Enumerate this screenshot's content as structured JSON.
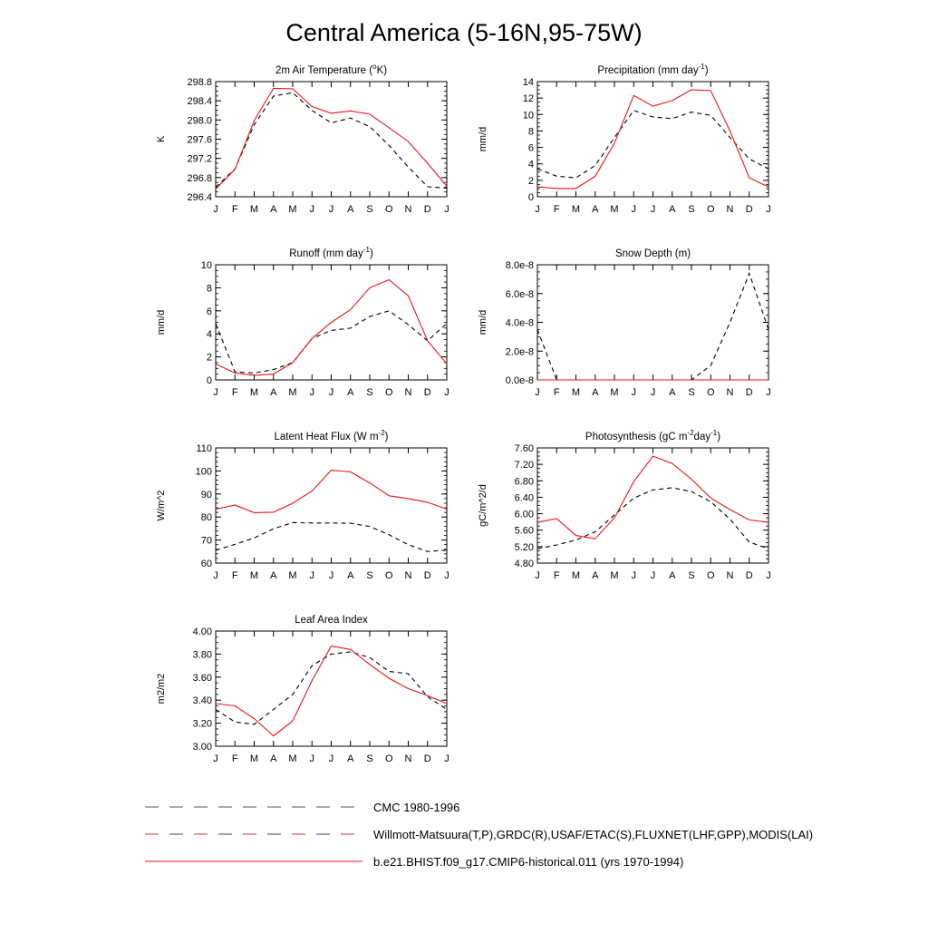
{
  "title": "Central America (5-16N,95-75W)",
  "months": [
    "J",
    "F",
    "M",
    "A",
    "M",
    "J",
    "J",
    "A",
    "S",
    "O",
    "N",
    "D",
    "J"
  ],
  "colors": {
    "model": "#e8141e",
    "obs": "#000000"
  },
  "legend": [
    {
      "label": "CMC 1980-1996",
      "style": "dashed-gray"
    },
    {
      "label": "Willmott-Matsuura(T,P),GRDC(R),USAF/ETAC(S),FLUXNET(LHF,GPP),MODIS(LAI)",
      "style": "dashed-redblue"
    },
    {
      "label": "b.e21.BHIST.f09_g17.CMIP6-historical.011 (yrs 1970-1994)",
      "style": "solid-red"
    }
  ],
  "chart_data": [
    {
      "type": "line",
      "title_main": "2m Air Temperature (",
      "title_sup": "o",
      "title_end": "K)",
      "ylabel": "K",
      "ylim": [
        296.4,
        298.8
      ],
      "yticks": [
        "296.4",
        "296.8",
        "297.2",
        "297.6",
        "298.0",
        "298.4",
        "298.8"
      ],
      "yminor": 0.1,
      "series": [
        {
          "values": [
            296.56,
            296.97,
            297.99,
            298.66,
            298.65,
            298.28,
            298.14,
            298.19,
            298.12,
            297.84,
            297.55,
            297.1,
            296.62
          ],
          "style": "solid"
        },
        {
          "values": [
            296.6,
            296.98,
            297.9,
            298.5,
            298.57,
            298.2,
            297.94,
            298.04,
            297.86,
            297.47,
            297.02,
            296.61,
            296.58
          ],
          "style": "dashed"
        }
      ]
    },
    {
      "type": "line",
      "title_main": "Precipitation (mm day",
      "title_sup": "-1",
      "title_end": ")",
      "ylabel": "mm/d",
      "ylim": [
        0,
        14
      ],
      "yticks": [
        "0",
        "2",
        "4",
        "6",
        "8",
        "10",
        "12",
        "14"
      ],
      "yminor": 0.5,
      "series": [
        {
          "values": [
            1.2,
            1.0,
            1.0,
            2.5,
            6.5,
            12.3,
            11.0,
            11.7,
            13.0,
            12.9,
            8.0,
            2.3,
            1.2
          ],
          "style": "solid"
        },
        {
          "values": [
            3.4,
            2.5,
            2.3,
            3.8,
            7.2,
            10.5,
            9.7,
            9.5,
            10.3,
            9.9,
            7.2,
            4.6,
            3.4
          ],
          "style": "dashed"
        }
      ]
    },
    {
      "type": "line",
      "title_main": "Runoff (mm day",
      "title_sup": "-1",
      "title_end": ")",
      "ylabel": "mm/d",
      "ylim": [
        0,
        10
      ],
      "yticks": [
        "0",
        "2",
        "4",
        "6",
        "8",
        "10"
      ],
      "yminor": 0.5,
      "series": [
        {
          "values": [
            1.4,
            0.6,
            0.4,
            0.5,
            1.5,
            3.6,
            5.0,
            6.1,
            8.0,
            8.7,
            7.3,
            3.4,
            1.4
          ],
          "style": "solid"
        },
        {
          "values": [
            4.9,
            0.7,
            0.6,
            0.9,
            1.5,
            3.6,
            4.3,
            4.5,
            5.5,
            6.0,
            4.8,
            3.4,
            4.9
          ],
          "style": "dashed"
        }
      ]
    },
    {
      "type": "line",
      "title_main": "Snow Depth (m)",
      "title_sup": "",
      "title_end": "",
      "ylabel": "mm/d",
      "ylim": [
        0,
        8e-08
      ],
      "yticks": [
        "0.0e-8",
        "2.0e-8",
        "4.0e-8",
        "6.0e-8",
        "8.0e-8"
      ],
      "yminor": 5e-09,
      "series": [
        {
          "values": [
            0,
            0,
            0,
            0,
            0,
            0,
            0,
            0,
            0,
            0,
            0,
            0,
            0
          ],
          "style": "solid"
        },
        {
          "values": [
            3.5e-08,
            0,
            0,
            0,
            0,
            0,
            0,
            0,
            0,
            1e-08,
            4e-08,
            7.4e-08,
            3.5e-08
          ],
          "style": "dashed"
        }
      ]
    },
    {
      "type": "line",
      "title_main": "Latent Heat Flux (W m",
      "title_sup": "-2",
      "title_end": ")",
      "ylabel": "W/m^2",
      "ylim": [
        60,
        110
      ],
      "yticks": [
        "60",
        "70",
        "80",
        "90",
        "100",
        "110"
      ],
      "yminor": 2,
      "series": [
        {
          "values": [
            83.4,
            85.2,
            81.9,
            82.1,
            86.0,
            91.3,
            100.3,
            99.6,
            94.8,
            89.2,
            88.0,
            86.4,
            83.4
          ],
          "style": "solid"
        },
        {
          "values": [
            65.6,
            68.1,
            70.9,
            74.9,
            77.6,
            77.4,
            77.4,
            77.3,
            75.9,
            72.3,
            68.0,
            65.0,
            65.6
          ],
          "style": "dashed"
        }
      ]
    },
    {
      "type": "line",
      "title_main": "Photosynthesis (gC m",
      "title_sup": "-2",
      "title_mid": "day",
      "title_sup2": "-1",
      "title_end": ")",
      "ylabel": "gC/m^2/d",
      "ylim": [
        4.8,
        7.6
      ],
      "yticks": [
        "4.80",
        "5.20",
        "5.60",
        "6.00",
        "6.40",
        "6.80",
        "7.20",
        "7.60"
      ],
      "yminor": 0.1,
      "series": [
        {
          "values": [
            5.79,
            5.88,
            5.47,
            5.39,
            5.9,
            6.78,
            7.4,
            7.22,
            6.84,
            6.38,
            6.1,
            5.85,
            5.79
          ],
          "style": "solid"
        },
        {
          "values": [
            5.15,
            5.24,
            5.36,
            5.56,
            5.97,
            6.38,
            6.58,
            6.63,
            6.54,
            6.29,
            5.87,
            5.31,
            5.15
          ],
          "style": "dashed"
        }
      ]
    },
    {
      "type": "line",
      "title_main": "Leaf Area Index",
      "title_sup": "",
      "title_end": "",
      "ylabel": "m2/m2",
      "ylim": [
        3.0,
        4.0
      ],
      "yticks": [
        "3.00",
        "3.20",
        "3.40",
        "3.60",
        "3.80",
        "4.00"
      ],
      "yminor": 0.05,
      "series": [
        {
          "values": [
            3.37,
            3.35,
            3.24,
            3.09,
            3.22,
            3.57,
            3.87,
            3.84,
            3.71,
            3.59,
            3.5,
            3.44,
            3.37
          ],
          "style": "solid"
        },
        {
          "values": [
            3.32,
            3.21,
            3.19,
            3.32,
            3.45,
            3.7,
            3.8,
            3.82,
            3.77,
            3.65,
            3.63,
            3.43,
            3.32
          ],
          "style": "dashed"
        }
      ]
    }
  ]
}
